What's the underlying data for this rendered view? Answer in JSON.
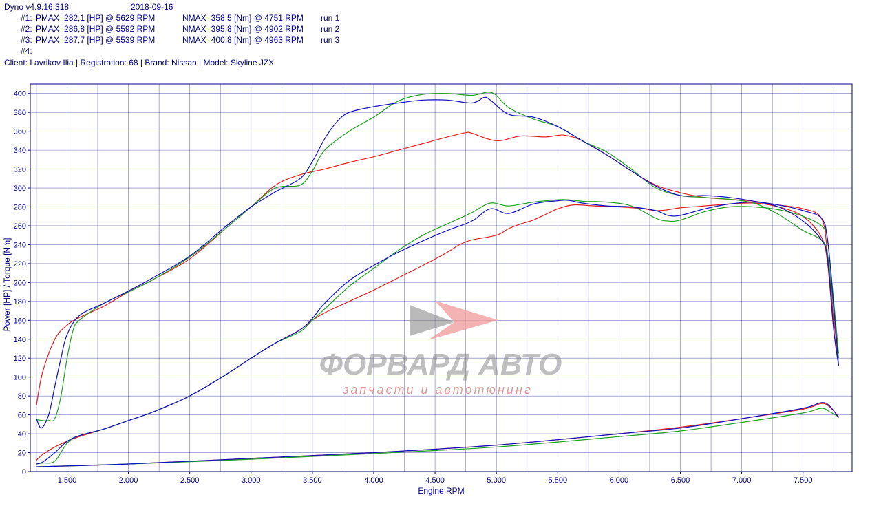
{
  "header": {
    "app": "Dyno v4.9.16.318",
    "date": "2018-09-16",
    "runs": [
      {
        "id": "#1:",
        "pmax": "PMAX=282,1 [HP] @ 5629 RPM",
        "nmax": "NMAX=358,5 [Nm] @ 4751 RPM",
        "name": "run 1"
      },
      {
        "id": "#2:",
        "pmax": "PMAX=286,8 [HP] @ 5592 RPM",
        "nmax": "NMAX=395,8 [Nm] @ 4902 RPM",
        "name": "run 2"
      },
      {
        "id": "#3:",
        "pmax": "PMAX=287,7 [HP] @ 5539 RPM",
        "nmax": "NMAX=400,8 [Nm] @ 4963 RPM",
        "name": "run 3"
      },
      {
        "id": "#4:",
        "pmax": "",
        "nmax": "",
        "name": ""
      }
    ],
    "client": "Client: Lavrikov Ilia | Registration: 68 | Brand: Nissan | Model: Skyline JZX"
  },
  "watermark": {
    "brand": "ФОРВАРД АВТО",
    "tagline": "запчасти и автотюнинг"
  },
  "colors": {
    "run1": "#e02020",
    "run2": "#1010c0",
    "run3": "#20a020",
    "grid": "#000080",
    "text": "#000080"
  },
  "chart_data": {
    "type": "line",
    "xlabel": "Engine RPM",
    "ylabel": "Power [HP] / Torque [Nm]",
    "xlim": [
      1200,
      7900
    ],
    "ylim": [
      0,
      410
    ],
    "xticks": [
      1500,
      2000,
      2500,
      3000,
      3500,
      4000,
      4500,
      5000,
      5500,
      6000,
      6500,
      7000,
      7500
    ],
    "xtick_labels": [
      "1.500",
      "2.000",
      "2.500",
      "3.000",
      "3.500",
      "4.000",
      "4.500",
      "5.000",
      "5.500",
      "6.000",
      "6.500",
      "7.000",
      "7.500"
    ],
    "yticks": [
      0,
      20,
      40,
      60,
      80,
      100,
      120,
      140,
      160,
      180,
      200,
      220,
      240,
      260,
      280,
      300,
      320,
      340,
      360,
      380,
      400
    ],
    "grid": true,
    "series": [
      {
        "name": "run 1",
        "kind": "torque",
        "color": "#e02020",
        "x": [
          1250,
          1300,
          1400,
          1500,
          1600,
          1800,
          2000,
          2200,
          2500,
          2800,
          3000,
          3200,
          3400,
          3600,
          3800,
          4000,
          4200,
          4400,
          4600,
          4751,
          4800,
          5000,
          5200,
          5400,
          5550,
          5700,
          5900,
          6100,
          6300,
          6500,
          6700,
          6900,
          7100,
          7300,
          7500,
          7650,
          7700,
          7750,
          7790
        ],
        "y": [
          70,
          105,
          140,
          155,
          163,
          175,
          190,
          203,
          225,
          258,
          280,
          303,
          314,
          320,
          327,
          333,
          340,
          347,
          354,
          358.5,
          358,
          350,
          355,
          354,
          356,
          350,
          335,
          318,
          303,
          295,
          290,
          288,
          286,
          282,
          278,
          268,
          230,
          160,
          125
        ]
      },
      {
        "name": "run 2",
        "kind": "torque",
        "color": "#1010c0",
        "x": [
          1250,
          1290,
          1350,
          1400,
          1450,
          1500,
          1600,
          1800,
          2000,
          2200,
          2500,
          2800,
          3000,
          3200,
          3400,
          3500,
          3600,
          3700,
          3800,
          4000,
          4200,
          4400,
          4600,
          4800,
          4902,
          4950,
          5100,
          5300,
          5500,
          5700,
          5900,
          6100,
          6300,
          6500,
          6700,
          6900,
          7100,
          7300,
          7500,
          7650,
          7700,
          7750,
          7790
        ],
        "y": [
          56,
          46,
          60,
          90,
          120,
          145,
          165,
          178,
          191,
          205,
          228,
          260,
          280,
          296,
          310,
          328,
          352,
          370,
          380,
          386,
          390,
          393,
          393,
          390,
          395.8,
          393,
          378,
          375,
          365,
          350,
          335,
          318,
          302,
          292,
          292,
          290,
          286,
          280,
          265,
          245,
          225,
          150,
          112
        ]
      },
      {
        "name": "run 3",
        "kind": "torque",
        "color": "#20a020",
        "x": [
          1250,
          1300,
          1350,
          1400,
          1450,
          1500,
          1550,
          1600,
          1800,
          2000,
          2200,
          2500,
          2800,
          3000,
          3200,
          3400,
          3500,
          3600,
          3800,
          4000,
          4200,
          4400,
          4600,
          4800,
          4963,
          5100,
          5300,
          5500,
          5700,
          5900,
          6100,
          6300,
          6500,
          6700,
          6900,
          7100,
          7300,
          7500,
          7650,
          7700,
          7750,
          7790
        ],
        "y": [
          55,
          54,
          54,
          56,
          80,
          120,
          150,
          160,
          178,
          190,
          203,
          227,
          258,
          280,
          300,
          303,
          318,
          340,
          360,
          375,
          392,
          399,
          400,
          398,
          400.8,
          385,
          373,
          365,
          350,
          338,
          320,
          300,
          292,
          290,
          288,
          284,
          272,
          255,
          245,
          230,
          170,
          120
        ]
      },
      {
        "name": "run 1",
        "kind": "power",
        "color": "#e02020",
        "x": [
          1250,
          1300,
          1400,
          1500,
          1600,
          1800,
          2000,
          2200,
          2500,
          2800,
          3000,
          3200,
          3400,
          3500,
          3600,
          3800,
          4000,
          4200,
          4400,
          4600,
          4700,
          4800,
          5000,
          5100,
          5200,
          5300,
          5400,
          5500,
          5629,
          5800,
          6000,
          6200,
          6300,
          6400,
          6500,
          6700,
          6900,
          7100,
          7300,
          7500,
          7650,
          7700,
          7750,
          7790
        ],
        "y": [
          12,
          18,
          26,
          32,
          37,
          45,
          54,
          63,
          80,
          103,
          120,
          136,
          150,
          160,
          168,
          180,
          192,
          205,
          218,
          232,
          240,
          245,
          250,
          257,
          262,
          266,
          272,
          278,
          282.1,
          281,
          280,
          278,
          276,
          277,
          279,
          281,
          283,
          284,
          280,
          270,
          248,
          220,
          150,
          120
        ]
      },
      {
        "name": "run 2",
        "kind": "power",
        "color": "#1010c0",
        "x": [
          1250,
          1300,
          1400,
          1500,
          1600,
          1800,
          2000,
          2200,
          2500,
          2800,
          3000,
          3200,
          3400,
          3500,
          3600,
          3800,
          4000,
          4200,
          4400,
          4600,
          4800,
          4950,
          5100,
          5300,
          5500,
          5592,
          5700,
          5900,
          6100,
          6300,
          6400,
          6500,
          6700,
          6900,
          7100,
          7300,
          7500,
          7650,
          7700,
          7750,
          7790
        ],
        "y": [
          8,
          10,
          20,
          32,
          38,
          45,
          54,
          63,
          80,
          103,
          120,
          136,
          150,
          162,
          178,
          202,
          218,
          232,
          244,
          255,
          265,
          278,
          273,
          283,
          286.5,
          286.8,
          284,
          281,
          280,
          276,
          271,
          271,
          278,
          283,
          285,
          282,
          276,
          268,
          245,
          175,
          112
        ]
      },
      {
        "name": "run 3",
        "kind": "power",
        "color": "#20a020",
        "x": [
          1250,
          1300,
          1400,
          1500,
          1600,
          1800,
          2000,
          2200,
          2500,
          2800,
          3000,
          3200,
          3400,
          3500,
          3600,
          3800,
          4000,
          4200,
          4400,
          4600,
          4800,
          4950,
          5100,
          5300,
          5539,
          5700,
          5900,
          6100,
          6300,
          6400,
          6500,
          6700,
          6900,
          7100,
          7300,
          7500,
          7650,
          7700,
          7750,
          7790
        ],
        "y": [
          8,
          9,
          11,
          30,
          38,
          45,
          54,
          63,
          80,
          103,
          120,
          136,
          148,
          160,
          172,
          196,
          215,
          234,
          250,
          262,
          274,
          284,
          281,
          285,
          287.7,
          286,
          285,
          281,
          268,
          265,
          266,
          275,
          280,
          280,
          277,
          270,
          260,
          245,
          180,
          125
        ]
      },
      {
        "name": "run 1",
        "kind": "loss",
        "color": "#e02020",
        "x": [
          1250,
          2000,
          3000,
          4000,
          5000,
          6000,
          6500,
          7000,
          7500,
          7650,
          7720,
          7790
        ],
        "y": [
          5,
          8,
          14,
          20,
          28,
          40,
          47,
          56,
          66,
          72,
          68,
          58
        ]
      },
      {
        "name": "run 2",
        "kind": "loss",
        "color": "#1010c0",
        "x": [
          1250,
          2000,
          3000,
          4000,
          5000,
          6000,
          6500,
          7000,
          7500,
          7650,
          7720,
          7790
        ],
        "y": [
          5,
          8,
          14,
          20,
          28,
          40,
          46,
          56,
          67,
          73,
          69,
          57
        ]
      },
      {
        "name": "run 3",
        "kind": "loss",
        "color": "#20a020",
        "x": [
          1250,
          2000,
          3000,
          4000,
          5000,
          6000,
          6500,
          7000,
          7500,
          7650,
          7720,
          7790
        ],
        "y": [
          5,
          8,
          13,
          19,
          26,
          37,
          43,
          52,
          62,
          67,
          63,
          58
        ]
      }
    ]
  }
}
